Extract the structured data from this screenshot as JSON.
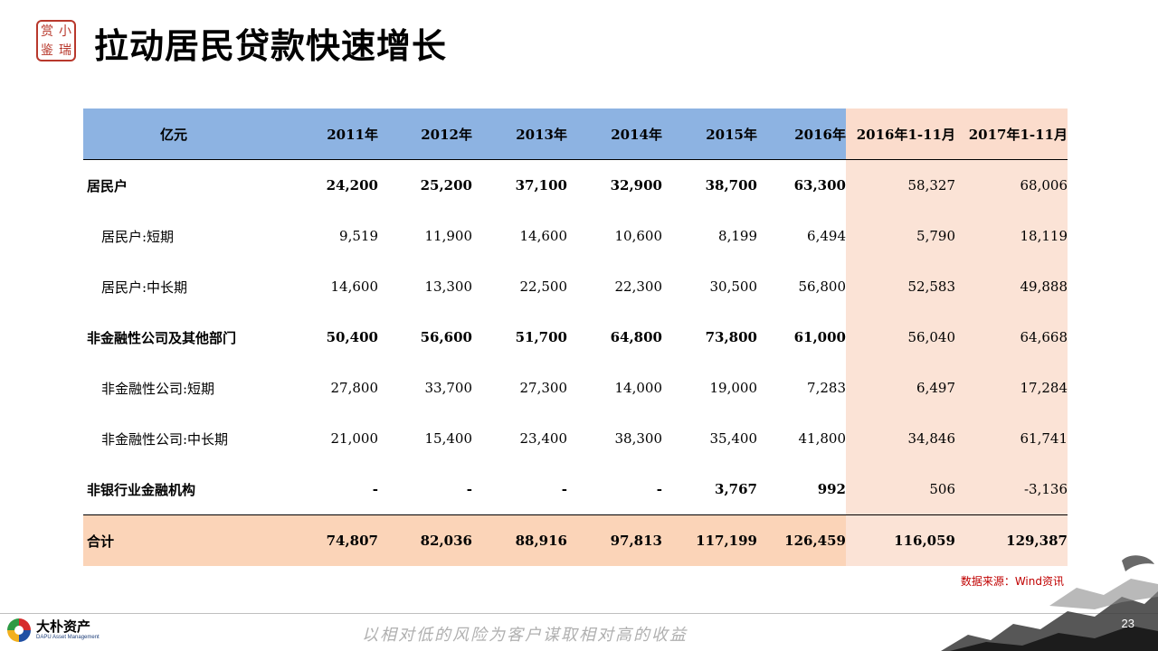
{
  "logo": {
    "seal_chars": [
      "赏",
      "小",
      "鉴",
      "瑞"
    ]
  },
  "title": "拉动居民贷款快速增长",
  "table": {
    "headers": [
      "亿元",
      "2011年",
      "2012年",
      "2013年",
      "2014年",
      "2015年",
      "2016年",
      "2016年1-11月",
      "2017年1-11月"
    ],
    "rows": [
      {
        "label": "居民户",
        "sub": false,
        "bold": true,
        "cells": [
          "24,200",
          "25,200",
          "37,100",
          "32,900",
          "38,700",
          "63,300",
          "58,327",
          "68,006"
        ]
      },
      {
        "label": "居民户:短期",
        "sub": true,
        "bold": false,
        "cells": [
          "9,519",
          "11,900",
          "14,600",
          "10,600",
          "8,199",
          "6,494",
          "5,790",
          "18,119"
        ]
      },
      {
        "label": "居民户:中长期",
        "sub": true,
        "bold": false,
        "cells": [
          "14,600",
          "13,300",
          "22,500",
          "22,300",
          "30,500",
          "56,800",
          "52,583",
          "49,888"
        ]
      },
      {
        "label": "非金融性公司及其他部门",
        "sub": false,
        "bold": true,
        "cells": [
          "50,400",
          "56,600",
          "51,700",
          "64,800",
          "73,800",
          "61,000",
          "56,040",
          "64,668"
        ]
      },
      {
        "label": "非金融性公司:短期",
        "sub": true,
        "bold": false,
        "cells": [
          "27,800",
          "33,700",
          "27,300",
          "14,000",
          "19,000",
          "7,283",
          "6,497",
          "17,284"
        ]
      },
      {
        "label": "非金融性公司:中长期",
        "sub": true,
        "bold": false,
        "cells": [
          "21,000",
          "15,400",
          "23,400",
          "38,300",
          "35,400",
          "41,800",
          "34,846",
          "61,741"
        ]
      },
      {
        "label": "非银行业金融机构",
        "sub": false,
        "bold": true,
        "cells": [
          "-",
          "-",
          "-",
          "-",
          "3,767",
          "992",
          "506",
          "-3,136"
        ]
      }
    ],
    "total": {
      "label": "合计",
      "cells": [
        "74,807",
        "82,036",
        "88,916",
        "97,813",
        "117,199",
        "126,459",
        "116,059",
        "129,387"
      ]
    }
  },
  "source": "数据来源：Wind资讯",
  "footer": {
    "brand_name": "大朴资产",
    "brand_en": "DAPU Asset Management",
    "slogan": "以相对低的风险为客户谋取相对高的收益",
    "page_number": "23"
  },
  "colors": {
    "header_blue": "#8db3e2",
    "highlight_peach": "#fbe3d6",
    "total_orange": "#fbd4b8",
    "source_red": "#c00000"
  }
}
